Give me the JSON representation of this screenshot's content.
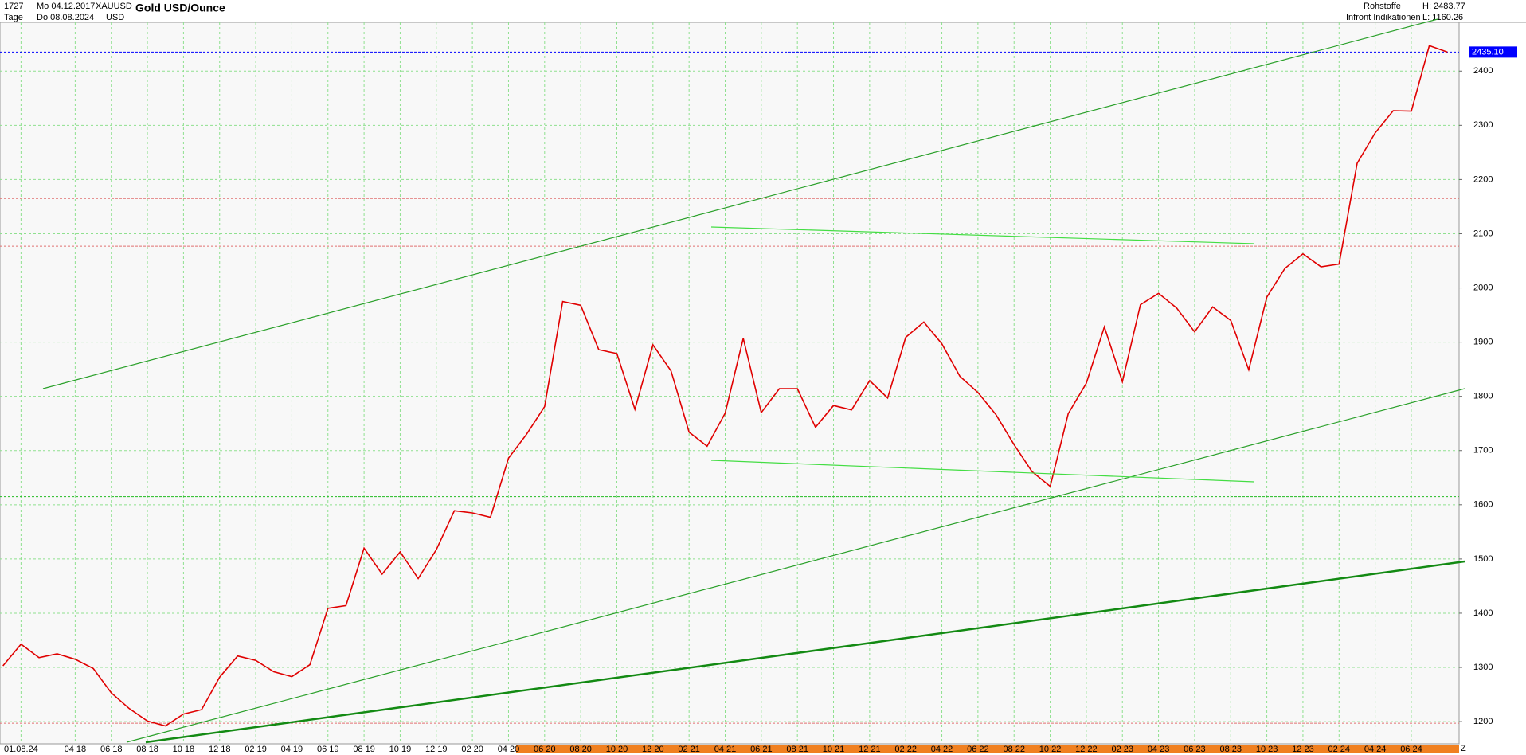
{
  "header": {
    "count": "1727",
    "from": "Mo 04.12.2017",
    "symbol": "XAUUSD",
    "period": "Tage",
    "to": "Do 08.08.2024",
    "currency": "USD",
    "group": "Rohstoffe",
    "source": "Infront Indikationen",
    "high": "H: 2483.77",
    "low": "L: 1160.26",
    "corner": "Z"
  },
  "chart_data": {
    "type": "line",
    "title": "Gold USD/Ounce",
    "categories": [
      null,
      "01.08.24",
      null,
      null,
      "04 18",
      null,
      "06 18",
      null,
      "08 18",
      null,
      "10 18",
      null,
      "12 18",
      null,
      "02 19",
      null,
      "04 19",
      null,
      "06 19",
      null,
      "08 19",
      null,
      "10 19",
      null,
      "12 19",
      null,
      "02 20",
      null,
      "04 20",
      null,
      "06 20",
      null,
      "08 20",
      null,
      "10 20",
      null,
      "12 20",
      null,
      "02 21",
      null,
      "04 21",
      null,
      "06 21",
      null,
      "08 21",
      null,
      "10 21",
      null,
      "12 21",
      null,
      "02 22",
      null,
      "04 22",
      null,
      "06 22",
      null,
      "08 22",
      null,
      "10 22",
      null,
      "12 22",
      null,
      "02 23",
      null,
      "04 23",
      null,
      "06 23",
      null,
      "08 23",
      null,
      "10 23",
      null,
      "12 23",
      null,
      "02 24",
      null,
      "04 24",
      null,
      "06 24",
      null,
      null
    ],
    "series": [
      {
        "name": "XAUUSD",
        "color": "#e00000",
        "values": [
          1303,
          1343,
          1318,
          1325,
          1315,
          1298,
          1253,
          1224,
          1201,
          1192,
          1214,
          1222,
          1282,
          1321,
          1313,
          1292,
          1283,
          1305,
          1409,
          1414,
          1520,
          1472,
          1513,
          1464,
          1517,
          1589,
          1585,
          1577,
          1686,
          1730,
          1781,
          1975,
          1968,
          1886,
          1879,
          1776,
          1895,
          1847,
          1734,
          1708,
          1769,
          1907,
          1770,
          1814,
          1814,
          1743,
          1783,
          1775,
          1829,
          1797,
          1909,
          1937,
          1897,
          1837,
          1807,
          1766,
          1711,
          1661,
          1634,
          1768,
          1824,
          1928,
          1827,
          1969,
          1990,
          1963,
          1919,
          1965,
          1940,
          1849,
          1983,
          2036,
          2063,
          2039,
          2044,
          2230,
          2286,
          2327,
          2326,
          2447,
          2435
        ]
      }
    ],
    "ylim": [
      1159,
      2490
    ],
    "yticks": [
      1200,
      1300,
      1400,
      1500,
      1600,
      1700,
      1800,
      1900,
      2000,
      2100,
      2200,
      2300,
      2400
    ],
    "grid": true,
    "reference_lines": [
      {
        "value": 2435.1,
        "label": "2435.10",
        "color": "#0000ff"
      },
      {
        "value": 2165,
        "color": "#e07070"
      },
      {
        "value": 2077,
        "color": "#e07070"
      },
      {
        "value": 1615,
        "color": "#22bb22"
      },
      {
        "value": 1197,
        "color": "#e07070"
      }
    ]
  }
}
